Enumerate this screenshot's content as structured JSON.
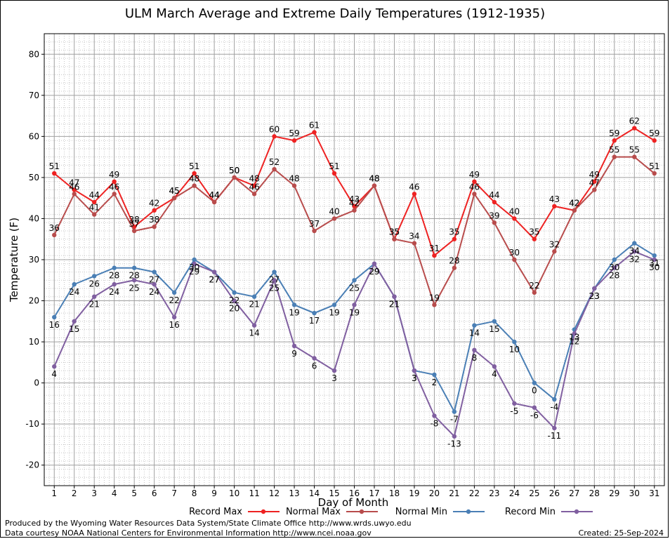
{
  "chart_data": {
    "type": "line",
    "title": "ULM March Average and Extreme Daily Temperatures (1912-1935)",
    "xlabel": "Day of Month",
    "ylabel": "Temperature (F)",
    "x": [
      1,
      2,
      3,
      4,
      5,
      6,
      7,
      8,
      9,
      10,
      11,
      12,
      13,
      14,
      15,
      16,
      17,
      18,
      19,
      20,
      21,
      22,
      23,
      24,
      25,
      26,
      27,
      28,
      29,
      30,
      31
    ],
    "xlim": [
      0.5,
      31.5
    ],
    "ylim": [
      -25,
      85
    ],
    "yticks": [
      -20,
      -10,
      0,
      10,
      20,
      30,
      40,
      50,
      60,
      70,
      80
    ],
    "grid": true,
    "legend_position": "bottom",
    "series": [
      {
        "name": "Record Max",
        "color": "#ee2222",
        "label_pos": "above",
        "values": [
          51,
          47,
          44,
          49,
          38,
          42,
          45,
          51,
          44,
          50,
          48,
          60,
          59,
          61,
          51,
          43,
          48,
          35,
          46,
          31,
          35,
          49,
          44,
          40,
          35,
          43,
          42,
          49,
          59,
          62,
          59
        ]
      },
      {
        "name": "Normal Max",
        "color": "#b84c4c",
        "label_pos": "above",
        "values": [
          36,
          46,
          41,
          46,
          37,
          38,
          45,
          48,
          44,
          50,
          46,
          52,
          48,
          37,
          40,
          42,
          48,
          35,
          34,
          19,
          28,
          46,
          39,
          30,
          22,
          32,
          42,
          47,
          55,
          55,
          51
        ]
      },
      {
        "name": "Normal Min",
        "color": "#4a7fb5",
        "label_pos": "below",
        "values": [
          16,
          24,
          26,
          28,
          28,
          27,
          22,
          30,
          27,
          22,
          21,
          27,
          19,
          17,
          19,
          25,
          29,
          21,
          3,
          2,
          -7,
          14,
          15,
          10,
          0,
          -4,
          13,
          23,
          30,
          34,
          31
        ]
      },
      {
        "name": "Record Min",
        "color": "#805fa0",
        "label_pos": "below",
        "values": [
          4,
          15,
          21,
          24,
          25,
          24,
          16,
          29,
          27,
          20,
          14,
          25,
          9,
          6,
          3,
          19,
          29,
          21,
          3,
          -8,
          -13,
          8,
          4,
          -5,
          -6,
          -11,
          12,
          23,
          28,
          32,
          30
        ]
      }
    ]
  },
  "footer": {
    "produced_by": "Produced by the Wyoming Water Resources Data System/State Climate Office http://www.wrds.uwyo.edu",
    "data_courtesy": "Data courtesy NOAA National Centers for Environmental Information http://www.ncei.noaa.gov",
    "created": "Created:  25-Sep-2024"
  }
}
